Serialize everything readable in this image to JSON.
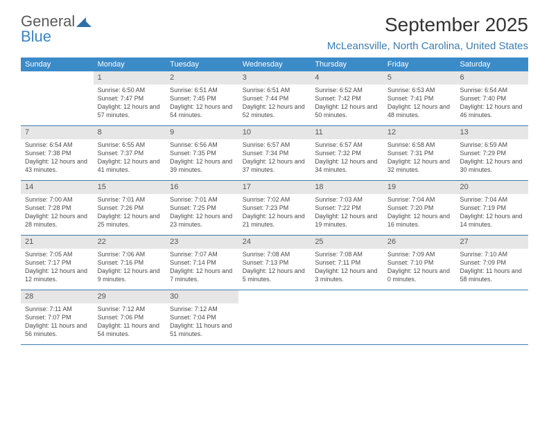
{
  "logo": {
    "text_top": "General",
    "text_bottom": "Blue"
  },
  "title": "September 2025",
  "location": "McLeansville, North Carolina, United States",
  "colors": {
    "header_bg": "#3b8bc9",
    "accent": "#3b7bb0",
    "daynum_bg": "#e6e6e6",
    "text": "#4a4a4a",
    "page_bg": "#ffffff"
  },
  "days_of_week": [
    "Sunday",
    "Monday",
    "Tuesday",
    "Wednesday",
    "Thursday",
    "Friday",
    "Saturday"
  ],
  "weeks": [
    [
      {
        "n": "",
        "l1": "",
        "l2": "",
        "l3": ""
      },
      {
        "n": "1",
        "l1": "Sunrise: 6:50 AM",
        "l2": "Sunset: 7:47 PM",
        "l3": "Daylight: 12 hours and 57 minutes."
      },
      {
        "n": "2",
        "l1": "Sunrise: 6:51 AM",
        "l2": "Sunset: 7:45 PM",
        "l3": "Daylight: 12 hours and 54 minutes."
      },
      {
        "n": "3",
        "l1": "Sunrise: 6:51 AM",
        "l2": "Sunset: 7:44 PM",
        "l3": "Daylight: 12 hours and 52 minutes."
      },
      {
        "n": "4",
        "l1": "Sunrise: 6:52 AM",
        "l2": "Sunset: 7:42 PM",
        "l3": "Daylight: 12 hours and 50 minutes."
      },
      {
        "n": "5",
        "l1": "Sunrise: 6:53 AM",
        "l2": "Sunset: 7:41 PM",
        "l3": "Daylight: 12 hours and 48 minutes."
      },
      {
        "n": "6",
        "l1": "Sunrise: 6:54 AM",
        "l2": "Sunset: 7:40 PM",
        "l3": "Daylight: 12 hours and 46 minutes."
      }
    ],
    [
      {
        "n": "7",
        "l1": "Sunrise: 6:54 AM",
        "l2": "Sunset: 7:38 PM",
        "l3": "Daylight: 12 hours and 43 minutes."
      },
      {
        "n": "8",
        "l1": "Sunrise: 6:55 AM",
        "l2": "Sunset: 7:37 PM",
        "l3": "Daylight: 12 hours and 41 minutes."
      },
      {
        "n": "9",
        "l1": "Sunrise: 6:56 AM",
        "l2": "Sunset: 7:35 PM",
        "l3": "Daylight: 12 hours and 39 minutes."
      },
      {
        "n": "10",
        "l1": "Sunrise: 6:57 AM",
        "l2": "Sunset: 7:34 PM",
        "l3": "Daylight: 12 hours and 37 minutes."
      },
      {
        "n": "11",
        "l1": "Sunrise: 6:57 AM",
        "l2": "Sunset: 7:32 PM",
        "l3": "Daylight: 12 hours and 34 minutes."
      },
      {
        "n": "12",
        "l1": "Sunrise: 6:58 AM",
        "l2": "Sunset: 7:31 PM",
        "l3": "Daylight: 12 hours and 32 minutes."
      },
      {
        "n": "13",
        "l1": "Sunrise: 6:59 AM",
        "l2": "Sunset: 7:29 PM",
        "l3": "Daylight: 12 hours and 30 minutes."
      }
    ],
    [
      {
        "n": "14",
        "l1": "Sunrise: 7:00 AM",
        "l2": "Sunset: 7:28 PM",
        "l3": "Daylight: 12 hours and 28 minutes."
      },
      {
        "n": "15",
        "l1": "Sunrise: 7:01 AM",
        "l2": "Sunset: 7:26 PM",
        "l3": "Daylight: 12 hours and 25 minutes."
      },
      {
        "n": "16",
        "l1": "Sunrise: 7:01 AM",
        "l2": "Sunset: 7:25 PM",
        "l3": "Daylight: 12 hours and 23 minutes."
      },
      {
        "n": "17",
        "l1": "Sunrise: 7:02 AM",
        "l2": "Sunset: 7:23 PM",
        "l3": "Daylight: 12 hours and 21 minutes."
      },
      {
        "n": "18",
        "l1": "Sunrise: 7:03 AM",
        "l2": "Sunset: 7:22 PM",
        "l3": "Daylight: 12 hours and 19 minutes."
      },
      {
        "n": "19",
        "l1": "Sunrise: 7:04 AM",
        "l2": "Sunset: 7:20 PM",
        "l3": "Daylight: 12 hours and 16 minutes."
      },
      {
        "n": "20",
        "l1": "Sunrise: 7:04 AM",
        "l2": "Sunset: 7:19 PM",
        "l3": "Daylight: 12 hours and 14 minutes."
      }
    ],
    [
      {
        "n": "21",
        "l1": "Sunrise: 7:05 AM",
        "l2": "Sunset: 7:17 PM",
        "l3": "Daylight: 12 hours and 12 minutes."
      },
      {
        "n": "22",
        "l1": "Sunrise: 7:06 AM",
        "l2": "Sunset: 7:16 PM",
        "l3": "Daylight: 12 hours and 9 minutes."
      },
      {
        "n": "23",
        "l1": "Sunrise: 7:07 AM",
        "l2": "Sunset: 7:14 PM",
        "l3": "Daylight: 12 hours and 7 minutes."
      },
      {
        "n": "24",
        "l1": "Sunrise: 7:08 AM",
        "l2": "Sunset: 7:13 PM",
        "l3": "Daylight: 12 hours and 5 minutes."
      },
      {
        "n": "25",
        "l1": "Sunrise: 7:08 AM",
        "l2": "Sunset: 7:11 PM",
        "l3": "Daylight: 12 hours and 3 minutes."
      },
      {
        "n": "26",
        "l1": "Sunrise: 7:09 AM",
        "l2": "Sunset: 7:10 PM",
        "l3": "Daylight: 12 hours and 0 minutes."
      },
      {
        "n": "27",
        "l1": "Sunrise: 7:10 AM",
        "l2": "Sunset: 7:09 PM",
        "l3": "Daylight: 11 hours and 58 minutes."
      }
    ],
    [
      {
        "n": "28",
        "l1": "Sunrise: 7:11 AM",
        "l2": "Sunset: 7:07 PM",
        "l3": "Daylight: 11 hours and 56 minutes."
      },
      {
        "n": "29",
        "l1": "Sunrise: 7:12 AM",
        "l2": "Sunset: 7:06 PM",
        "l3": "Daylight: 11 hours and 54 minutes."
      },
      {
        "n": "30",
        "l1": "Sunrise: 7:12 AM",
        "l2": "Sunset: 7:04 PM",
        "l3": "Daylight: 11 hours and 51 minutes."
      },
      {
        "n": "",
        "l1": "",
        "l2": "",
        "l3": ""
      },
      {
        "n": "",
        "l1": "",
        "l2": "",
        "l3": ""
      },
      {
        "n": "",
        "l1": "",
        "l2": "",
        "l3": ""
      },
      {
        "n": "",
        "l1": "",
        "l2": "",
        "l3": ""
      }
    ]
  ]
}
